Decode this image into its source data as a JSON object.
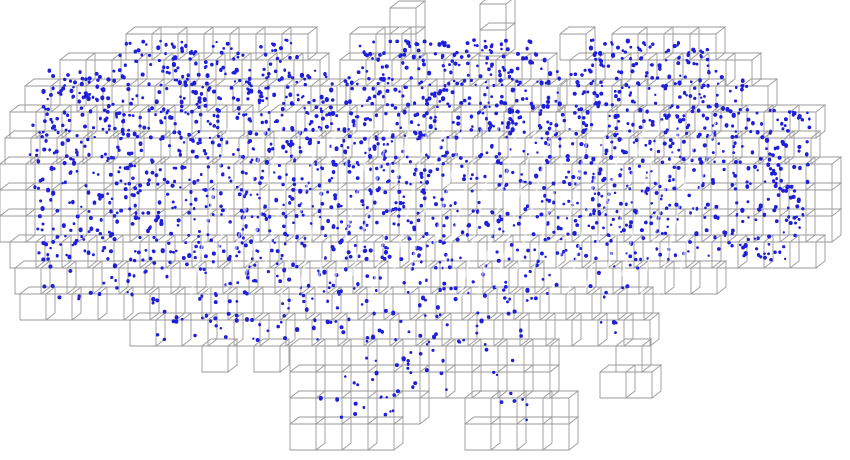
{
  "scene": {
    "background_color": "#ffffff",
    "voxel_edge_color": "#9a9a9a",
    "point_color": "#1f1fdb",
    "voxel_grid_icon": "voxel-octree-icon",
    "point_cloud_icon": "point-cloud-icon"
  }
}
